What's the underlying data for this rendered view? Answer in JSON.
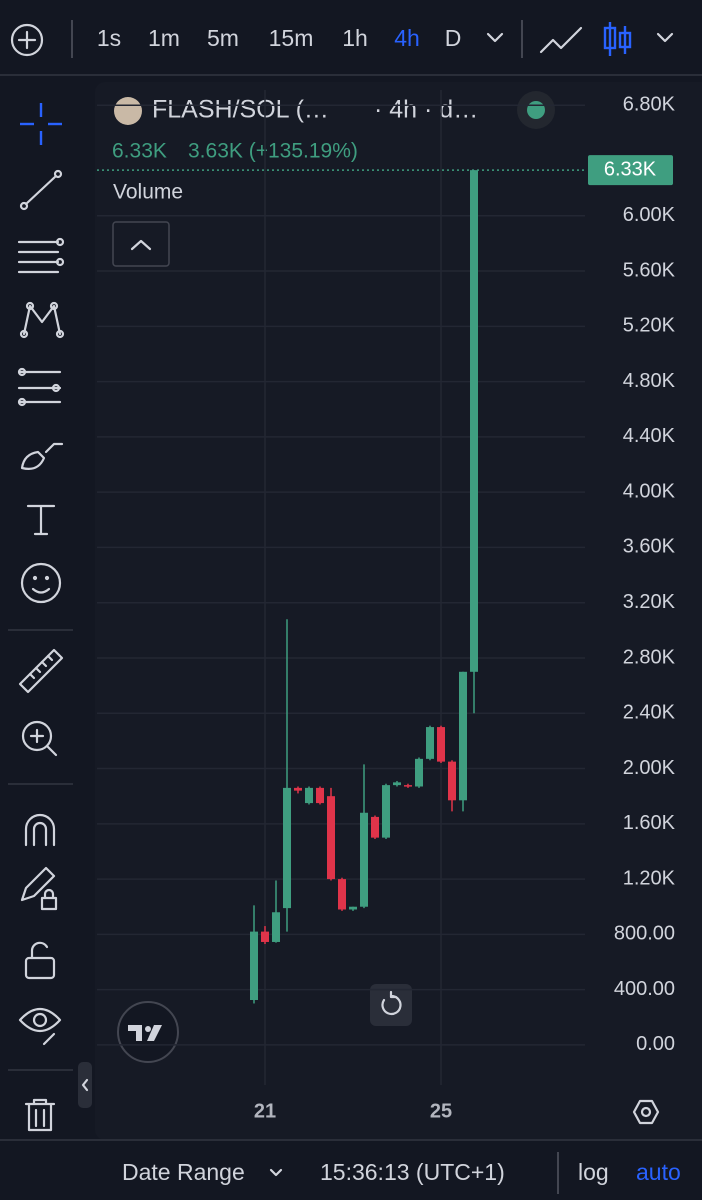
{
  "toolbar": {
    "intervals": [
      "1s",
      "1m",
      "5m",
      "15m",
      "1h",
      "4h",
      "D"
    ],
    "active": "4h"
  },
  "header": {
    "symbol": "FLASH/SOL (…",
    "interval": "· 4h · d…",
    "last": "6.33K",
    "change": "3.63K (+135.19%)",
    "indicator": "Volume"
  },
  "chart_data": {
    "type": "candlestick",
    "categories": [
      null,
      "21",
      null,
      null,
      null,
      null,
      null,
      null,
      null,
      null,
      null,
      null,
      null,
      null,
      null,
      null,
      null,
      "25",
      null,
      null,
      null
    ],
    "open": [
      325,
      820,
      745,
      990,
      1860,
      1750,
      1860,
      1800,
      1200,
      980,
      1000,
      1650,
      1500,
      1880,
      1880,
      1870,
      2070,
      2300,
      2050,
      1770,
      2700
    ],
    "high": [
      1010,
      860,
      1190,
      3080,
      1870,
      1870,
      1870,
      1860,
      1210,
      1000,
      2030,
      1660,
      1890,
      1910,
      1890,
      2080,
      2310,
      2310,
      2060,
      2700,
      6330
    ],
    "low": [
      300,
      730,
      740,
      820,
      1820,
      1740,
      1740,
      1190,
      970,
      970,
      990,
      1490,
      1490,
      1870,
      1860,
      1860,
      2060,
      2040,
      1690,
      1690,
      2400
    ],
    "close": [
      820,
      745,
      960,
      1860,
      1840,
      1860,
      1750,
      1200,
      980,
      1000,
      1680,
      1500,
      1880,
      1900,
      1870,
      2070,
      2300,
      2050,
      1770,
      2700,
      6330
    ],
    "up_color": "#3f9e80",
    "down_color": "#e0344a",
    "ylim": [
      -290,
      6910
    ],
    "yticks": [
      {
        "value": 6800,
        "label": "6.80K"
      },
      {
        "value": 6000,
        "label": "6.00K"
      },
      {
        "value": 5600,
        "label": "5.60K"
      },
      {
        "value": 5200,
        "label": "5.20K"
      },
      {
        "value": 4800,
        "label": "4.80K"
      },
      {
        "value": 4400,
        "label": "4.40K"
      },
      {
        "value": 4000,
        "label": "4.00K"
      },
      {
        "value": 3600,
        "label": "3.60K"
      },
      {
        "value": 3200,
        "label": "3.20K"
      },
      {
        "value": 2800,
        "label": "2.80K"
      },
      {
        "value": 2400,
        "label": "2.40K"
      },
      {
        "value": 2000,
        "label": "2.00K"
      },
      {
        "value": 1600,
        "label": "1.60K"
      },
      {
        "value": 1200,
        "label": "1.20K"
      },
      {
        "value": 800,
        "label": "800.00"
      },
      {
        "value": 400,
        "label": "400.00"
      },
      {
        "value": 0,
        "label": "0.00"
      }
    ],
    "last_price": {
      "value": 6330,
      "label": "6.33K"
    },
    "grid": true
  },
  "footer": {
    "date_range": "Date Range",
    "time": "15:36:13 (UTC+1)",
    "log": "log",
    "auto": "auto"
  }
}
